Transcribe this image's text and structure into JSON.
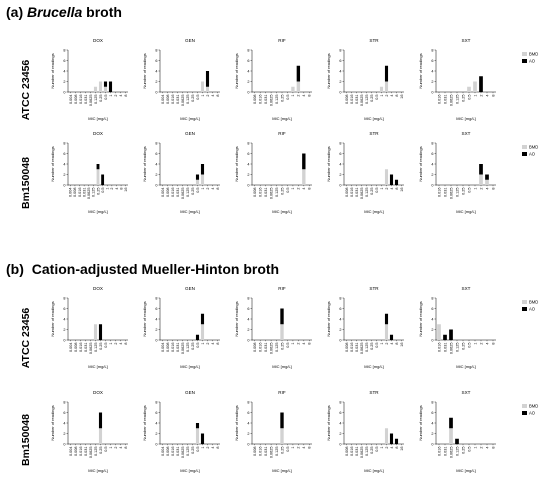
{
  "sections": [
    {
      "letter": "(a)",
      "title_plain": "",
      "title_italic": "Brucella",
      "title_rest": " broth"
    },
    {
      "letter": "(b)",
      "title_plain": "Cation-adjusted Mueller-Hinton broth",
      "title_italic": "",
      "title_rest": ""
    }
  ],
  "row_labels": [
    "ATCC 23456",
    "Bm150048",
    "ATCC 23456",
    "Bm150048"
  ],
  "legend": {
    "items": [
      "BMD",
      "AO"
    ],
    "colors": {
      "BMD": "#d2d2d2",
      "AO": "#000000"
    }
  },
  "common": {
    "ylabel": "Number of readings",
    "xlabel": "MIC [mg/L]"
  },
  "chart_data": [
    {
      "type": "bar",
      "panel": "a",
      "strain": "ATCC 23456",
      "title": "DOX",
      "categories": [
        "0.004",
        "0.008",
        "0.016",
        "0.031",
        "0.0625",
        "0.125",
        "0.25",
        "0.5",
        "1",
        "2",
        "4",
        "8"
      ],
      "series": [
        {
          "name": "BMD",
          "values": [
            0,
            0,
            0,
            0,
            0,
            1,
            2,
            1,
            0,
            0,
            0,
            0
          ]
        },
        {
          "name": "AO",
          "values": [
            0,
            0,
            0,
            0,
            0,
            0,
            0,
            1,
            2,
            0,
            0,
            0
          ]
        }
      ],
      "ylim": [
        0,
        8
      ],
      "yticks": [
        0,
        2,
        4,
        6,
        8
      ]
    },
    {
      "type": "bar",
      "panel": "a",
      "strain": "ATCC 23456",
      "title": "GEN",
      "categories": [
        "0.004",
        "0.008",
        "0.016",
        "0.031",
        "0.0625",
        "0.125",
        "0.25",
        "0.5",
        "1",
        "2",
        "4",
        "8"
      ],
      "series": [
        {
          "name": "BMD",
          "values": [
            0,
            0,
            0,
            0,
            0,
            0,
            0,
            0,
            2,
            1,
            0,
            0
          ]
        },
        {
          "name": "AO",
          "values": [
            0,
            0,
            0,
            0,
            0,
            0,
            0,
            0,
            0,
            3,
            0,
            0
          ]
        }
      ],
      "ylim": [
        0,
        8
      ],
      "yticks": [
        0,
        2,
        4,
        6,
        8
      ]
    },
    {
      "type": "bar",
      "panel": "a",
      "strain": "ATCC 23456",
      "title": "RIF",
      "categories": [
        "0.008",
        "0.016",
        "0.031",
        "0.0625",
        "0.125",
        "0.25",
        "0.5",
        "1",
        "2",
        "4",
        "8"
      ],
      "series": [
        {
          "name": "BMD",
          "values": [
            0,
            0,
            0,
            0,
            0,
            0,
            0,
            1,
            2,
            0,
            0
          ]
        },
        {
          "name": "AO",
          "values": [
            0,
            0,
            0,
            0,
            0,
            0,
            0,
            0,
            3,
            0,
            0
          ]
        }
      ],
      "ylim": [
        0,
        8
      ],
      "yticks": [
        0,
        2,
        4,
        6,
        8
      ]
    },
    {
      "type": "bar",
      "panel": "a",
      "strain": "ATCC 23456",
      "title": "STR",
      "categories": [
        "0.008",
        "0.016",
        "0.031",
        "0.0625",
        "0.125",
        "0.25",
        "0.5",
        "1",
        "2",
        "4",
        "8",
        "16"
      ],
      "series": [
        {
          "name": "BMD",
          "values": [
            0,
            0,
            0,
            0,
            0,
            0,
            0,
            1,
            2,
            0,
            0,
            0
          ]
        },
        {
          "name": "AO",
          "values": [
            0,
            0,
            0,
            0,
            0,
            0,
            0,
            0,
            3,
            0,
            0,
            0
          ]
        }
      ],
      "ylim": [
        0,
        8
      ],
      "yticks": [
        0,
        2,
        4,
        6,
        8
      ]
    },
    {
      "type": "bar",
      "panel": "a",
      "strain": "ATCC 23456",
      "title": "SXT",
      "categories": [
        "0.016",
        "0.031",
        "0.0625",
        "0.125",
        "0.25",
        "0.5",
        "1",
        "2",
        "4",
        "8"
      ],
      "series": [
        {
          "name": "BMD",
          "values": [
            0,
            0,
            0,
            0,
            0,
            1,
            2,
            0,
            0,
            0
          ]
        },
        {
          "name": "AO",
          "values": [
            0,
            0,
            0,
            0,
            0,
            0,
            0,
            3,
            0,
            0
          ]
        }
      ],
      "ylim": [
        0,
        8
      ],
      "yticks": [
        0,
        2,
        4,
        6,
        8
      ]
    },
    {
      "type": "bar",
      "panel": "a",
      "strain": "Bm150048",
      "title": "DOX",
      "categories": [
        "0.004",
        "0.008",
        "0.016",
        "0.031",
        "0.0625",
        "0.125",
        "0.25",
        "0.5",
        "1",
        "2",
        "4",
        "8",
        "16"
      ],
      "series": [
        {
          "name": "BMD",
          "values": [
            0,
            0,
            0,
            0,
            0,
            0,
            3,
            0,
            0,
            0,
            0,
            0,
            0
          ]
        },
        {
          "name": "AO",
          "values": [
            0,
            0,
            0,
            0,
            0,
            0,
            1,
            2,
            0,
            0,
            0,
            0,
            0
          ]
        }
      ],
      "ylim": [
        0,
        8
      ],
      "yticks": [
        0,
        2,
        4,
        6,
        8
      ]
    },
    {
      "type": "bar",
      "panel": "a",
      "strain": "Bm150048",
      "title": "GEN",
      "categories": [
        "0.004",
        "0.008",
        "0.016",
        "0.031",
        "0.0625",
        "0.125",
        "0.25",
        "0.5",
        "1",
        "2",
        "4",
        "8"
      ],
      "series": [
        {
          "name": "BMD",
          "values": [
            0,
            0,
            0,
            0,
            0,
            0,
            0,
            1,
            2,
            0,
            0,
            0
          ]
        },
        {
          "name": "AO",
          "values": [
            0,
            0,
            0,
            0,
            0,
            0,
            0,
            1,
            2,
            0,
            0,
            0
          ]
        }
      ],
      "ylim": [
        0,
        8
      ],
      "yticks": [
        0,
        2,
        4,
        6,
        8
      ]
    },
    {
      "type": "bar",
      "panel": "a",
      "strain": "Bm150048",
      "title": "RIF",
      "categories": [
        "0.008",
        "0.016",
        "0.031",
        "0.0625",
        "0.125",
        "0.25",
        "0.5",
        "1",
        "2",
        "4",
        "8"
      ],
      "series": [
        {
          "name": "BMD",
          "values": [
            0,
            0,
            0,
            0,
            0,
            0,
            0,
            0,
            0,
            3,
            0
          ]
        },
        {
          "name": "AO",
          "values": [
            0,
            0,
            0,
            0,
            0,
            0,
            0,
            0,
            0,
            3,
            0
          ]
        }
      ],
      "ylim": [
        0,
        8
      ],
      "yticks": [
        0,
        2,
        4,
        6,
        8
      ]
    },
    {
      "type": "bar",
      "panel": "a",
      "strain": "Bm150048",
      "title": "STR",
      "categories": [
        "0.008",
        "0.016",
        "0.031",
        "0.0625",
        "0.125",
        "0.25",
        "0.5",
        "1",
        "2",
        "4",
        "8",
        "16"
      ],
      "series": [
        {
          "name": "BMD",
          "values": [
            0,
            0,
            0,
            0,
            0,
            0,
            0,
            0,
            3,
            0,
            0,
            0
          ]
        },
        {
          "name": "AO",
          "values": [
            0,
            0,
            0,
            0,
            0,
            0,
            0,
            0,
            0,
            2,
            1,
            0
          ]
        }
      ],
      "ylim": [
        0,
        8
      ],
      "yticks": [
        0,
        2,
        4,
        6,
        8
      ]
    },
    {
      "type": "bar",
      "panel": "a",
      "strain": "Bm150048",
      "title": "SXT",
      "categories": [
        "0.016",
        "0.031",
        "0.0625",
        "0.125",
        "0.25",
        "0.5",
        "1",
        "2",
        "4",
        "8"
      ],
      "series": [
        {
          "name": "BMD",
          "values": [
            0,
            0,
            0,
            0,
            0,
            0,
            0,
            2,
            1,
            0
          ]
        },
        {
          "name": "AO",
          "values": [
            0,
            0,
            0,
            0,
            0,
            0,
            0,
            2,
            1,
            0
          ]
        }
      ],
      "ylim": [
        0,
        8
      ],
      "yticks": [
        0,
        2,
        4,
        6,
        8
      ]
    },
    {
      "type": "bar",
      "panel": "b",
      "strain": "ATCC 23456",
      "title": "DOX",
      "categories": [
        "0.004",
        "0.008",
        "0.016",
        "0.031",
        "0.0625",
        "0.125",
        "0.25",
        "0.5",
        "1",
        "2",
        "4",
        "8"
      ],
      "series": [
        {
          "name": "BMD",
          "values": [
            0,
            0,
            0,
            0,
            0,
            3,
            0,
            0,
            0,
            0,
            0,
            0
          ]
        },
        {
          "name": "AO",
          "values": [
            0,
            0,
            0,
            0,
            0,
            0,
            3,
            0,
            0,
            0,
            0,
            0
          ]
        }
      ],
      "ylim": [
        0,
        8
      ],
      "yticks": [
        0,
        2,
        4,
        6,
        8
      ]
    },
    {
      "type": "bar",
      "panel": "b",
      "strain": "ATCC 23456",
      "title": "GEN",
      "categories": [
        "0.004",
        "0.008",
        "0.016",
        "0.031",
        "0.0625",
        "0.125",
        "0.25",
        "0.5",
        "1",
        "2",
        "4",
        "8"
      ],
      "series": [
        {
          "name": "BMD",
          "values": [
            0,
            0,
            0,
            0,
            0,
            0,
            0,
            0,
            3,
            0,
            0,
            0
          ]
        },
        {
          "name": "AO",
          "values": [
            0,
            0,
            0,
            0,
            0,
            0,
            0,
            1,
            2,
            0,
            0,
            0
          ]
        }
      ],
      "ylim": [
        0,
        8
      ],
      "yticks": [
        0,
        2,
        4,
        6,
        8
      ]
    },
    {
      "type": "bar",
      "panel": "b",
      "strain": "ATCC 23456",
      "title": "RIF",
      "categories": [
        "0.008",
        "0.016",
        "0.031",
        "0.0625",
        "0.125",
        "0.25",
        "0.5",
        "1",
        "2",
        "4",
        "8"
      ],
      "series": [
        {
          "name": "BMD",
          "values": [
            0,
            0,
            0,
            0,
            0,
            3,
            0,
            0,
            0,
            0,
            0
          ]
        },
        {
          "name": "AO",
          "values": [
            0,
            0,
            0,
            0,
            0,
            3,
            0,
            0,
            0,
            0,
            0
          ]
        }
      ],
      "ylim": [
        0,
        8
      ],
      "yticks": [
        0,
        2,
        4,
        6,
        8
      ]
    },
    {
      "type": "bar",
      "panel": "b",
      "strain": "ATCC 23456",
      "title": "STR",
      "categories": [
        "0.008",
        "0.016",
        "0.031",
        "0.0625",
        "0.125",
        "0.25",
        "0.5",
        "1",
        "2",
        "4",
        "8",
        "16"
      ],
      "series": [
        {
          "name": "BMD",
          "values": [
            0,
            0,
            0,
            0,
            0,
            0,
            0,
            0,
            3,
            0,
            0,
            0
          ]
        },
        {
          "name": "AO",
          "values": [
            0,
            0,
            0,
            0,
            0,
            0,
            0,
            0,
            2,
            1,
            0,
            0
          ]
        }
      ],
      "ylim": [
        0,
        8
      ],
      "yticks": [
        0,
        2,
        4,
        6,
        8
      ]
    },
    {
      "type": "bar",
      "panel": "b",
      "strain": "ATCC 23456",
      "title": "SXT",
      "categories": [
        "0.016",
        "0.031",
        "0.0625",
        "0.125",
        "0.25",
        "0.5",
        "1",
        "2",
        "4",
        "8"
      ],
      "series": [
        {
          "name": "BMD",
          "values": [
            3,
            0,
            0,
            0,
            0,
            0,
            0,
            0,
            0,
            0
          ]
        },
        {
          "name": "AO",
          "values": [
            0,
            1,
            2,
            0,
            0,
            0,
            0,
            0,
            0,
            0
          ]
        }
      ],
      "ylim": [
        0,
        8
      ],
      "yticks": [
        0,
        2,
        4,
        6,
        8
      ]
    },
    {
      "type": "bar",
      "panel": "b",
      "strain": "Bm150048",
      "title": "DOX",
      "categories": [
        "0.004",
        "0.008",
        "0.016",
        "0.031",
        "0.0625",
        "0.125",
        "0.25",
        "0.5",
        "1",
        "2",
        "4",
        "8"
      ],
      "series": [
        {
          "name": "BMD",
          "values": [
            0,
            0,
            0,
            0,
            0,
            0,
            3,
            0,
            0,
            0,
            0,
            0
          ]
        },
        {
          "name": "AO",
          "values": [
            0,
            0,
            0,
            0,
            0,
            0,
            3,
            0,
            0,
            0,
            0,
            0
          ]
        }
      ],
      "ylim": [
        0,
        8
      ],
      "yticks": [
        0,
        2,
        4,
        6,
        8
      ]
    },
    {
      "type": "bar",
      "panel": "b",
      "strain": "Bm150048",
      "title": "GEN",
      "categories": [
        "0.004",
        "0.008",
        "0.016",
        "0.031",
        "0.0625",
        "0.125",
        "0.25",
        "0.5",
        "1",
        "2",
        "4",
        "8"
      ],
      "series": [
        {
          "name": "BMD",
          "values": [
            0,
            0,
            0,
            0,
            0,
            0,
            0,
            3,
            0,
            0,
            0,
            0
          ]
        },
        {
          "name": "AO",
          "values": [
            0,
            0,
            0,
            0,
            0,
            0,
            0,
            1,
            2,
            0,
            0,
            0
          ]
        }
      ],
      "ylim": [
        0,
        8
      ],
      "yticks": [
        0,
        2,
        4,
        6,
        8
      ]
    },
    {
      "type": "bar",
      "panel": "b",
      "strain": "Bm150048",
      "title": "RIF",
      "categories": [
        "0.008",
        "0.016",
        "0.031",
        "0.0625",
        "0.125",
        "0.25",
        "0.5",
        "1",
        "2",
        "4",
        "8"
      ],
      "series": [
        {
          "name": "BMD",
          "values": [
            0,
            0,
            0,
            0,
            0,
            3,
            0,
            0,
            0,
            0,
            0
          ]
        },
        {
          "name": "AO",
          "values": [
            0,
            0,
            0,
            0,
            0,
            3,
            0,
            0,
            0,
            0,
            0
          ]
        }
      ],
      "ylim": [
        0,
        8
      ],
      "yticks": [
        0,
        2,
        4,
        6,
        8
      ]
    },
    {
      "type": "bar",
      "panel": "b",
      "strain": "Bm150048",
      "title": "STR",
      "categories": [
        "0.008",
        "0.016",
        "0.031",
        "0.0625",
        "0.125",
        "0.25",
        "0.5",
        "1",
        "2",
        "4",
        "8",
        "16"
      ],
      "series": [
        {
          "name": "BMD",
          "values": [
            0,
            0,
            0,
            0,
            0,
            0,
            0,
            0,
            3,
            0,
            0,
            0
          ]
        },
        {
          "name": "AO",
          "values": [
            0,
            0,
            0,
            0,
            0,
            0,
            0,
            0,
            0,
            2,
            1,
            0
          ]
        }
      ],
      "ylim": [
        0,
        8
      ],
      "yticks": [
        0,
        2,
        4,
        6,
        8
      ]
    },
    {
      "type": "bar",
      "panel": "b",
      "strain": "Bm150048",
      "title": "SXT",
      "categories": [
        "0.016",
        "0.031",
        "0.0625",
        "0.125",
        "0.25",
        "0.5",
        "1",
        "2",
        "4",
        "8"
      ],
      "series": [
        {
          "name": "BMD",
          "values": [
            0,
            0,
            3,
            0,
            0,
            0,
            0,
            0,
            0,
            0
          ]
        },
        {
          "name": "AO",
          "values": [
            0,
            0,
            2,
            1,
            0,
            0,
            0,
            0,
            0,
            0
          ]
        }
      ],
      "ylim": [
        0,
        8
      ],
      "yticks": [
        0,
        2,
        4,
        6,
        8
      ]
    }
  ]
}
